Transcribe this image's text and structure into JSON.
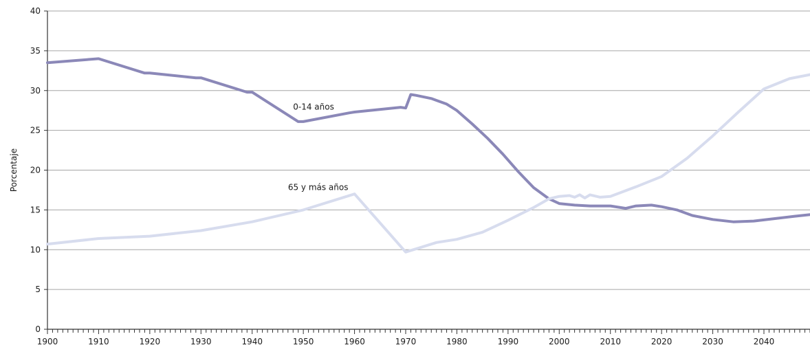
{
  "chart_data": {
    "type": "line",
    "title": "",
    "xlabel": "",
    "ylabel": "Porcentaje",
    "xlim": [
      1900,
      2049
    ],
    "ylim": [
      0,
      40
    ],
    "x_ticks": [
      1900,
      1910,
      1920,
      1930,
      1940,
      1950,
      1960,
      1970,
      1980,
      1990,
      2000,
      2010,
      2020,
      2030,
      2040
    ],
    "y_ticks": [
      0,
      5,
      10,
      15,
      20,
      25,
      30,
      35,
      40
    ],
    "grid": "horizontal",
    "series": [
      {
        "name": "0-14 años",
        "color": "#8b88b8",
        "points": [
          [
            1900,
            33.5
          ],
          [
            1910,
            34.0
          ],
          [
            1919,
            32.2
          ],
          [
            1920,
            32.2
          ],
          [
            1929,
            31.6
          ],
          [
            1930,
            31.6
          ],
          [
            1939,
            29.8
          ],
          [
            1940,
            29.8
          ],
          [
            1949,
            26.1
          ],
          [
            1950,
            26.1
          ],
          [
            1959,
            27.2
          ],
          [
            1960,
            27.3
          ],
          [
            1969,
            27.9
          ],
          [
            1970,
            27.8
          ],
          [
            1971,
            29.5
          ],
          [
            1972,
            29.4
          ],
          [
            1975,
            29.0
          ],
          [
            1978,
            28.3
          ],
          [
            1980,
            27.5
          ],
          [
            1983,
            25.8
          ],
          [
            1986,
            24.0
          ],
          [
            1989,
            22.0
          ],
          [
            1992,
            19.8
          ],
          [
            1995,
            17.8
          ],
          [
            1998,
            16.4
          ],
          [
            2000,
            15.8
          ],
          [
            2003,
            15.6
          ],
          [
            2006,
            15.5
          ],
          [
            2010,
            15.5
          ],
          [
            2013,
            15.2
          ],
          [
            2015,
            15.5
          ],
          [
            2018,
            15.6
          ],
          [
            2020,
            15.4
          ],
          [
            2023,
            15.0
          ],
          [
            2026,
            14.3
          ],
          [
            2030,
            13.8
          ],
          [
            2034,
            13.5
          ],
          [
            2038,
            13.6
          ],
          [
            2042,
            13.9
          ],
          [
            2046,
            14.2
          ],
          [
            2049,
            14.4
          ]
        ]
      },
      {
        "name": "65 y más años",
        "color": "#d7dcee",
        "points": [
          [
            1900,
            10.7
          ],
          [
            1910,
            11.4
          ],
          [
            1920,
            11.7
          ],
          [
            1930,
            12.4
          ],
          [
            1940,
            13.5
          ],
          [
            1950,
            15.0
          ],
          [
            1960,
            17.0
          ],
          [
            1970,
            9.7
          ],
          [
            1973,
            10.3
          ],
          [
            1976,
            10.9
          ],
          [
            1980,
            11.3
          ],
          [
            1985,
            12.2
          ],
          [
            1990,
            13.7
          ],
          [
            1995,
            15.3
          ],
          [
            1998,
            16.4
          ],
          [
            2000,
            16.7
          ],
          [
            2002,
            16.8
          ],
          [
            2003,
            16.6
          ],
          [
            2004,
            16.9
          ],
          [
            2005,
            16.5
          ],
          [
            2006,
            16.9
          ],
          [
            2008,
            16.6
          ],
          [
            2010,
            16.7
          ],
          [
            2015,
            17.9
          ],
          [
            2020,
            19.2
          ],
          [
            2025,
            21.5
          ],
          [
            2030,
            24.3
          ],
          [
            2035,
            27.3
          ],
          [
            2040,
            30.2
          ],
          [
            2045,
            31.5
          ],
          [
            2049,
            32.0
          ]
        ]
      }
    ],
    "annotations": [
      {
        "text": "0-14 años",
        "x": 1948,
        "y": 27.6
      },
      {
        "text": "65 y más años",
        "x": 1947,
        "y": 17.5
      }
    ]
  }
}
